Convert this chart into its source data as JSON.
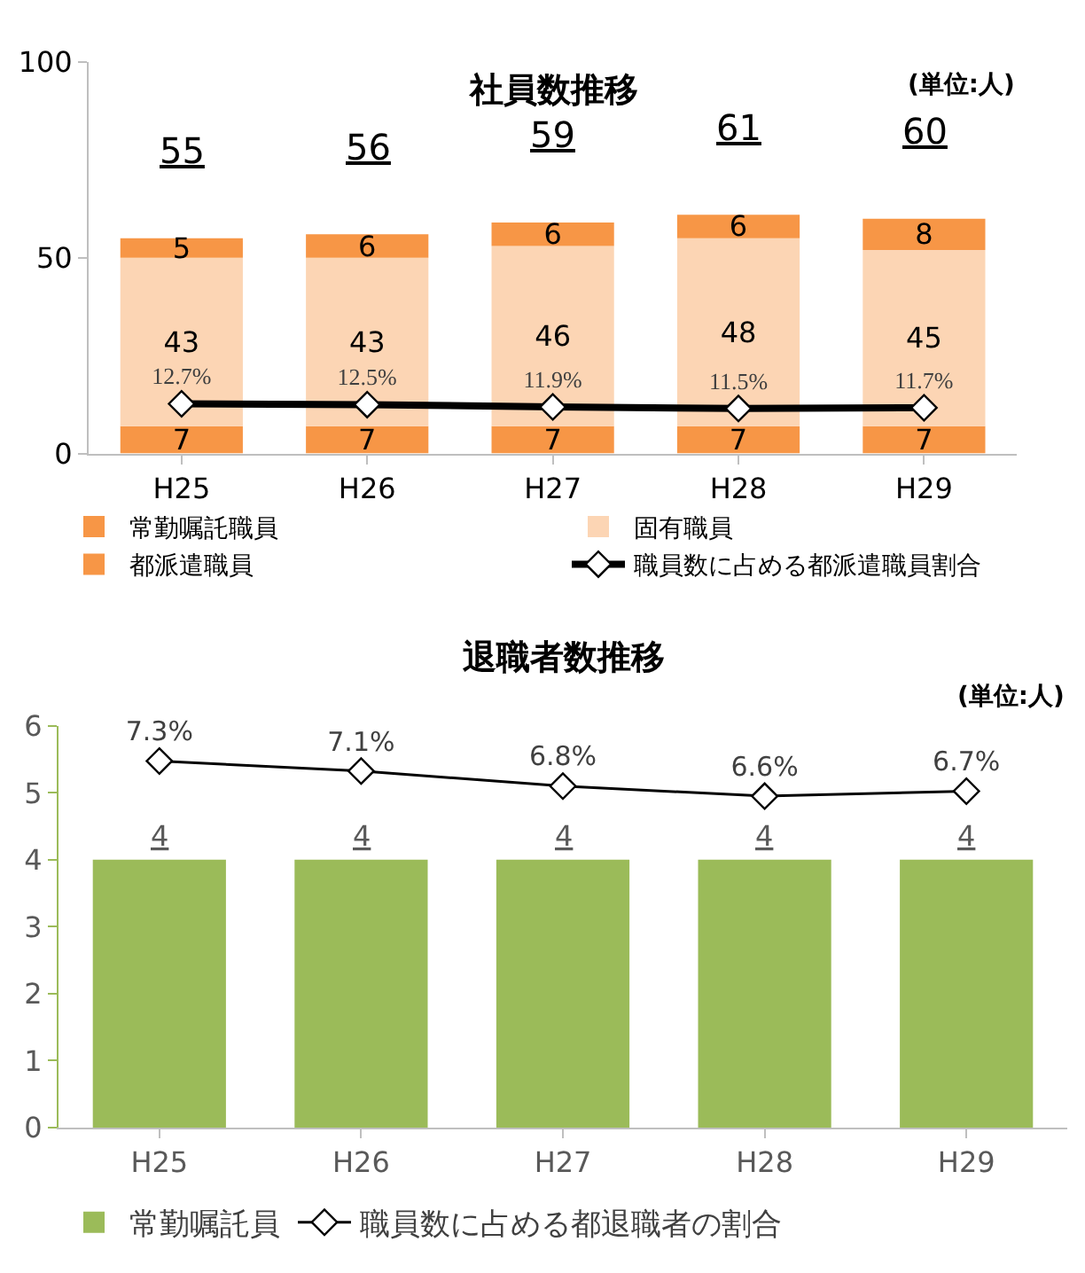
{
  "chart_data": [
    {
      "type": "bar",
      "stacked": true,
      "title": "社員数推移",
      "annotations": [
        "(単位:人)"
      ],
      "categories": [
        "H25",
        "H26",
        "H27",
        "H28",
        "H29"
      ],
      "ylim": [
        0,
        100
      ],
      "yticks": [
        0,
        50,
        100
      ],
      "legend": "bottom",
      "totals": [
        "55",
        "56",
        "59",
        "61",
        "60"
      ],
      "series": [
        {
          "name": "都派遣職員",
          "color": "#f79646",
          "values": [
            7,
            7,
            7,
            7,
            7
          ],
          "value_labels": [
            "7",
            "7",
            "7",
            "7",
            "7"
          ]
        },
        {
          "name": "固有職員",
          "color": "#fcd5b4",
          "values": [
            43,
            43,
            46,
            48,
            45
          ],
          "value_labels": [
            "43",
            "43",
            "46",
            "48",
            "45"
          ]
        },
        {
          "name": "常勤嘱託職員",
          "color": "#f79646",
          "values": [
            5,
            6,
            6,
            6,
            8
          ],
          "value_labels": [
            "5",
            "6",
            "6",
            "6",
            "8"
          ]
        },
        {
          "name": "職員数に占める都派遣職員割合",
          "type": "line",
          "color": "#000000",
          "marker": "diamond",
          "values": [
            12.7,
            12.5,
            11.9,
            11.5,
            11.7
          ],
          "value_labels": [
            "12.7%",
            "12.5%",
            "11.9%",
            "11.5%",
            "11.7%"
          ]
        }
      ]
    },
    {
      "type": "bar",
      "title": "退職者数推移",
      "annotations": [
        "(単位:人)"
      ],
      "categories": [
        "H25",
        "H26",
        "H27",
        "H28",
        "H29"
      ],
      "ylim": [
        0,
        6
      ],
      "yticks": [
        0,
        1,
        2,
        3,
        4,
        5,
        6
      ],
      "y2lim": [
        0,
        8
      ],
      "legend": "bottom",
      "totals": [
        "4",
        "4",
        "4",
        "4",
        "4"
      ],
      "series": [
        {
          "name": "常勤嘱託員",
          "color": "#9bbb59",
          "values": [
            4,
            4,
            4,
            4,
            4
          ]
        },
        {
          "name": "職員数に占める都退職者の割合",
          "type": "line",
          "axis": "y2",
          "color": "#000000",
          "marker": "diamond",
          "values": [
            7.3,
            7.1,
            6.8,
            6.6,
            6.7
          ],
          "value_labels": [
            "7.3%",
            "7.1%",
            "6.8%",
            "6.6%",
            "6.7%"
          ]
        }
      ]
    }
  ]
}
